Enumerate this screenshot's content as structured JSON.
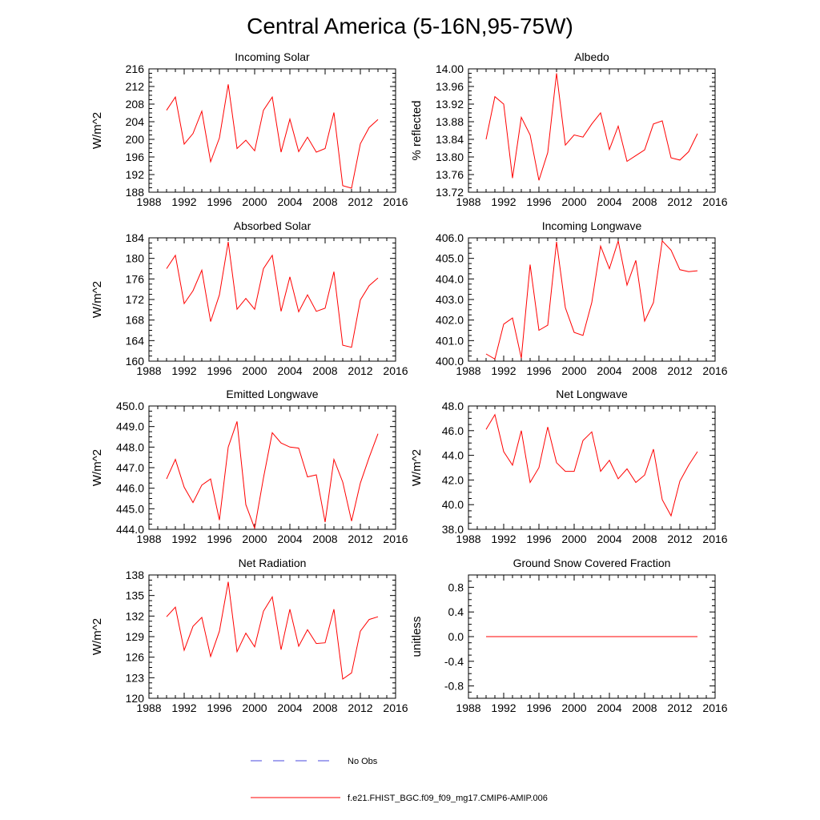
{
  "title": "Central America (5-16N,95-75W)",
  "legend": {
    "no_obs_label": "No Obs",
    "no_obs_color": "#4a4adf",
    "model_label": "f.e21.FHIST_BGC.f09_f09_mg17.CMIP6-AMIP.006",
    "model_color": "#ff0000"
  },
  "chart_data": [
    {
      "type": "line",
      "title": "Incoming Solar",
      "ylabel": "W/m^2",
      "xlabel": "",
      "xlim": [
        1988,
        2016
      ],
      "xticks": [
        1988,
        1992,
        1996,
        2000,
        2004,
        2008,
        2012,
        2016
      ],
      "ylim": [
        188,
        216
      ],
      "yticks": [
        188,
        192,
        196,
        200,
        204,
        208,
        212,
        216
      ],
      "ytick_labels": [
        "188",
        "192",
        "196",
        "200",
        "204",
        "208",
        "212",
        "216"
      ],
      "series": [
        {
          "name": "f.e21.FHIST_BGC.f09_f09_mg17.CMIP6-AMIP.006",
          "x": [
            1990,
            1991,
            1992,
            1993,
            1994,
            1995,
            1996,
            1997,
            1998,
            1999,
            2000,
            2001,
            2002,
            2003,
            2004,
            2005,
            2006,
            2007,
            2008,
            2009,
            2010,
            2011,
            2012,
            2013,
            2014
          ],
          "values": [
            206.6,
            209.6,
            198.9,
            201.3,
            206.4,
            194.9,
            200.3,
            212.5,
            197.9,
            199.8,
            197.4,
            206.6,
            209.6,
            197.1,
            204.6,
            197.2,
            200.5,
            197.1,
            197.9,
            206.1,
            189.5,
            188.9,
            199.0,
            202.7,
            204.5
          ]
        }
      ]
    },
    {
      "type": "line",
      "title": "Albedo",
      "ylabel": "% reflected",
      "xlabel": "",
      "xlim": [
        1988,
        2016
      ],
      "xticks": [
        1988,
        1992,
        1996,
        2000,
        2004,
        2008,
        2012,
        2016
      ],
      "ylim": [
        13.72,
        14.0
      ],
      "yticks": [
        13.72,
        13.76,
        13.8,
        13.84,
        13.88,
        13.92,
        13.96,
        14.0
      ],
      "ytick_labels": [
        "13.72",
        "13.76",
        "13.80",
        "13.84",
        "13.88",
        "13.92",
        "13.96",
        "14.00"
      ],
      "series": [
        {
          "name": "f.e21.FHIST_BGC.f09_f09_mg17.CMIP6-AMIP.006",
          "x": [
            1990,
            1991,
            1992,
            1993,
            1994,
            1995,
            1996,
            1997,
            1998,
            1999,
            2000,
            2001,
            2002,
            2003,
            2004,
            2005,
            2006,
            2007,
            2008,
            2009,
            2010,
            2011,
            2012,
            2013,
            2014
          ],
          "values": [
            13.84,
            13.937,
            13.92,
            13.752,
            13.89,
            13.85,
            13.747,
            13.81,
            13.99,
            13.827,
            13.85,
            13.845,
            13.875,
            13.9,
            13.817,
            13.87,
            13.79,
            13.803,
            13.816,
            13.875,
            13.882,
            13.798,
            13.793,
            13.812,
            13.853
          ]
        }
      ]
    },
    {
      "type": "line",
      "title": "Absorbed Solar",
      "ylabel": "W/m^2",
      "xlabel": "",
      "xlim": [
        1988,
        2016
      ],
      "xticks": [
        1988,
        1992,
        1996,
        2000,
        2004,
        2008,
        2012,
        2016
      ],
      "ylim": [
        160,
        184
      ],
      "yticks": [
        160,
        164,
        168,
        172,
        176,
        180,
        184
      ],
      "ytick_labels": [
        "160",
        "164",
        "168",
        "172",
        "176",
        "180",
        "184"
      ],
      "series": [
        {
          "name": "f.e21.FHIST_BGC.f09_f09_mg17.CMIP6-AMIP.006",
          "x": [
            1990,
            1991,
            1992,
            1993,
            1994,
            1995,
            1996,
            1997,
            1998,
            1999,
            2000,
            2001,
            2002,
            2003,
            2004,
            2005,
            2006,
            2007,
            2008,
            2009,
            2010,
            2011,
            2012,
            2013,
            2014
          ],
          "values": [
            178.0,
            180.6,
            171.2,
            173.7,
            177.7,
            167.7,
            172.9,
            183.2,
            170.1,
            172.2,
            170.1,
            178.0,
            180.6,
            169.7,
            176.4,
            169.6,
            172.9,
            169.7,
            170.3,
            177.4,
            163.1,
            162.7,
            171.9,
            174.7,
            176.2
          ]
        }
      ]
    },
    {
      "type": "line",
      "title": "Incoming Longwave",
      "ylabel": "",
      "xlabel": "",
      "xlim": [
        1988,
        2016
      ],
      "xticks": [
        1988,
        1992,
        1996,
        2000,
        2004,
        2008,
        2012,
        2016
      ],
      "ylim": [
        400.0,
        406.0
      ],
      "yticks": [
        400,
        401,
        402,
        403,
        404,
        405,
        406
      ],
      "ytick_labels": [
        "400.0",
        "401.0",
        "402.0",
        "403.0",
        "404.0",
        "405.0",
        "406.0"
      ],
      "series": [
        {
          "name": "f.e21.FHIST_BGC.f09_f09_mg17.CMIP6-AMIP.006",
          "x": [
            1990,
            1991,
            1992,
            1993,
            1994,
            1995,
            1996,
            1997,
            1998,
            1999,
            2000,
            2001,
            2002,
            2003,
            2004,
            2005,
            2006,
            2007,
            2008,
            2009,
            2010,
            2011,
            2012,
            2013,
            2014
          ],
          "values": [
            400.35,
            400.1,
            401.8,
            402.1,
            400.15,
            404.7,
            401.5,
            401.75,
            405.8,
            402.6,
            401.4,
            401.25,
            402.85,
            405.6,
            404.5,
            405.85,
            403.7,
            404.9,
            401.95,
            402.85,
            405.85,
            405.4,
            404.45,
            404.35,
            404.4
          ]
        }
      ]
    },
    {
      "type": "line",
      "title": "Emitted Longwave",
      "ylabel": "W/m^2",
      "xlabel": "",
      "xlim": [
        1988,
        2016
      ],
      "xticks": [
        1988,
        1992,
        1996,
        2000,
        2004,
        2008,
        2012,
        2016
      ],
      "ylim": [
        444.0,
        450.0
      ],
      "yticks": [
        444,
        445,
        446,
        447,
        448,
        449,
        450
      ],
      "ytick_labels": [
        "444.0",
        "445.0",
        "446.0",
        "447.0",
        "448.0",
        "449.0",
        "450.0"
      ],
      "series": [
        {
          "name": "f.e21.FHIST_BGC.f09_f09_mg17.CMIP6-AMIP.006",
          "x": [
            1990,
            1991,
            1992,
            1993,
            1994,
            1995,
            1996,
            1997,
            1998,
            1999,
            2000,
            2001,
            2002,
            2003,
            2004,
            2005,
            2006,
            2007,
            2008,
            2009,
            2010,
            2011,
            2012,
            2013,
            2014
          ],
          "values": [
            446.45,
            447.4,
            446.05,
            445.3,
            446.15,
            446.45,
            444.45,
            448.0,
            449.25,
            445.2,
            444.05,
            446.5,
            448.7,
            448.2,
            448.0,
            447.95,
            446.55,
            446.65,
            444.35,
            447.4,
            446.3,
            444.4,
            446.25,
            447.5,
            448.65
          ]
        }
      ]
    },
    {
      "type": "line",
      "title": "Net Longwave",
      "ylabel": "W/m^2",
      "xlabel": "",
      "xlim": [
        1988,
        2016
      ],
      "xticks": [
        1988,
        1992,
        1996,
        2000,
        2004,
        2008,
        2012,
        2016
      ],
      "ylim": [
        38.0,
        48.0
      ],
      "yticks": [
        38,
        40,
        42,
        44,
        46,
        48
      ],
      "ytick_labels": [
        "38.0",
        "40.0",
        "42.0",
        "44.0",
        "46.0",
        "48.0"
      ],
      "series": [
        {
          "name": "f.e21.FHIST_BGC.f09_f09_mg17.CMIP6-AMIP.006",
          "x": [
            1990,
            1991,
            1992,
            1993,
            1994,
            1995,
            1996,
            1997,
            1998,
            1999,
            2000,
            2001,
            2002,
            2003,
            2004,
            2005,
            2006,
            2007,
            2008,
            2009,
            2010,
            2011,
            2012,
            2013,
            2014
          ],
          "values": [
            46.1,
            47.3,
            44.3,
            43.2,
            46.0,
            41.8,
            43.0,
            46.3,
            43.4,
            42.7,
            42.7,
            45.2,
            45.9,
            42.7,
            43.6,
            42.1,
            42.9,
            41.8,
            42.4,
            44.5,
            40.4,
            39.1,
            41.9,
            43.2,
            44.3
          ]
        }
      ]
    },
    {
      "type": "line",
      "title": "Net Radiation",
      "ylabel": "W/m^2",
      "xlabel": "",
      "xlim": [
        1988,
        2016
      ],
      "xticks": [
        1988,
        1992,
        1996,
        2000,
        2004,
        2008,
        2012,
        2016
      ],
      "ylim": [
        120,
        138
      ],
      "yticks": [
        120,
        123,
        126,
        129,
        132,
        135,
        138
      ],
      "ytick_labels": [
        "120",
        "123",
        "126",
        "129",
        "132",
        "135",
        "138"
      ],
      "series": [
        {
          "name": "f.e21.FHIST_BGC.f09_f09_mg17.CMIP6-AMIP.006",
          "x": [
            1990,
            1991,
            1992,
            1993,
            1994,
            1995,
            1996,
            1997,
            1998,
            1999,
            2000,
            2001,
            2002,
            2003,
            2004,
            2005,
            2006,
            2007,
            2008,
            2009,
            2010,
            2011,
            2012,
            2013,
            2014
          ],
          "values": [
            131.9,
            133.3,
            127.0,
            130.5,
            131.8,
            126.1,
            129.8,
            137.0,
            126.8,
            129.5,
            127.5,
            132.7,
            134.8,
            127.1,
            133.0,
            127.6,
            130.0,
            128.0,
            128.1,
            133.0,
            122.8,
            123.7,
            129.8,
            131.5,
            131.9
          ]
        }
      ]
    },
    {
      "type": "line",
      "title": "Ground Snow Covered Fraction",
      "ylabel": "unitless",
      "xlabel": "",
      "xlim": [
        1988,
        2016
      ],
      "xticks": [
        1988,
        1992,
        1996,
        2000,
        2004,
        2008,
        2012,
        2016
      ],
      "ylim": [
        -1.0,
        1.0
      ],
      "yticks": [
        -0.8,
        -0.4,
        0.0,
        0.4,
        0.8
      ],
      "ytick_labels": [
        "-0.8",
        "-0.4",
        "0.0",
        "0.4",
        "0.8"
      ],
      "series": [
        {
          "name": "f.e21.FHIST_BGC.f09_f09_mg17.CMIP6-AMIP.006",
          "x": [
            1990,
            1991,
            1992,
            1993,
            1994,
            1995,
            1996,
            1997,
            1998,
            1999,
            2000,
            2001,
            2002,
            2003,
            2004,
            2005,
            2006,
            2007,
            2008,
            2009,
            2010,
            2011,
            2012,
            2013,
            2014
          ],
          "values": [
            0,
            0,
            0,
            0,
            0,
            0,
            0,
            0,
            0,
            0,
            0,
            0,
            0,
            0,
            0,
            0,
            0,
            0,
            0,
            0,
            0,
            0,
            0,
            0,
            0
          ]
        }
      ]
    }
  ]
}
